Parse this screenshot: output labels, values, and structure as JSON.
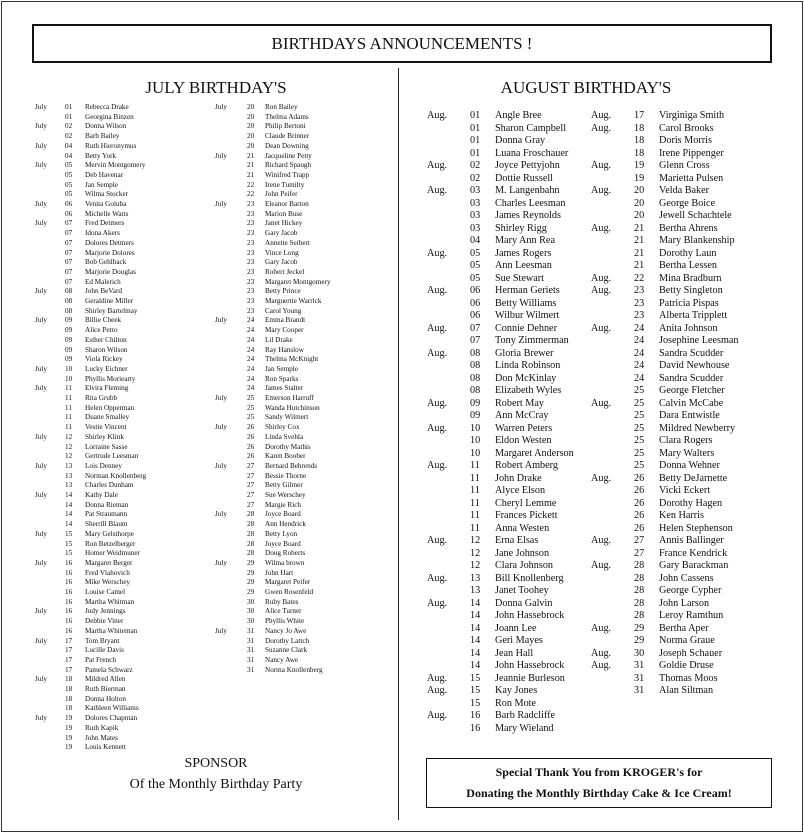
{
  "title": "BIRTHDAYS ANNOUNCEMENTS !",
  "july": {
    "heading": "JULY BIRTHDAY'S",
    "col1": [
      [
        "July",
        "01",
        "Rebecca Drake"
      ],
      [
        "",
        "01",
        "Georgina Binzen"
      ],
      [
        "July",
        "02",
        "Donna Wilson"
      ],
      [
        "",
        "02",
        "Barb Bailey"
      ],
      [
        "July",
        "04",
        "Ruth Hieronymus"
      ],
      [
        "",
        "04",
        "Betty York"
      ],
      [
        "July",
        "05",
        "Mervin Montgomery"
      ],
      [
        "",
        "05",
        "Deb Havenar"
      ],
      [
        "",
        "05",
        "Jan Semple"
      ],
      [
        "",
        "05",
        "Wilma Stocker"
      ],
      [
        "July",
        "06",
        "Venita Goluba"
      ],
      [
        "",
        "06",
        "Michelle Watts"
      ],
      [
        "July",
        "07",
        "Fred Detmers"
      ],
      [
        "",
        "07",
        "Idona Akers"
      ],
      [
        "",
        "07",
        "Dolores Detmers"
      ],
      [
        "",
        "07",
        "Marjorie Dolores"
      ],
      [
        "",
        "07",
        "Bob Gehlback"
      ],
      [
        "",
        "07",
        "Marjorie Douglas"
      ],
      [
        "",
        "07",
        "Ed Malerich"
      ],
      [
        "July",
        "08",
        "John BeVard"
      ],
      [
        "",
        "08",
        "Geraldine Miller"
      ],
      [
        "",
        "08",
        "Shirley Bartelmay"
      ],
      [
        "July",
        "09",
        "Billie Cheek"
      ],
      [
        "",
        "09",
        "Alice Petro"
      ],
      [
        "",
        "09",
        "Esther Chilton"
      ],
      [
        "",
        "09",
        "Sharon Wilson"
      ],
      [
        "",
        "09",
        "Viola Rickey"
      ],
      [
        "July",
        "10",
        "Lucky Eichner"
      ],
      [
        "",
        "10",
        "Phyllis Moriearty"
      ],
      [
        "July",
        "11",
        "Elvira Fleming"
      ],
      [
        "",
        "11",
        "Rita Grubb"
      ],
      [
        "",
        "11",
        "Helen Opperman"
      ],
      [
        "",
        "11",
        "Duane Smalley"
      ],
      [
        "",
        "11",
        "Vestie Vincent"
      ],
      [
        "July",
        "12",
        "Shirley Klink"
      ],
      [
        "",
        "12",
        "Lorraine Sasse"
      ],
      [
        "",
        "12",
        "Gertrude Leesman"
      ],
      [
        "July",
        "13",
        "Lois Denney"
      ],
      [
        "",
        "13",
        "Norman Knollenberg"
      ],
      [
        "",
        "13",
        "Charles Dunham"
      ],
      [
        "July",
        "14",
        "Kathy Dale"
      ],
      [
        "",
        "14",
        "Donna Rieman"
      ],
      [
        "",
        "14",
        "Pat Straumann"
      ],
      [
        "",
        "14",
        "Sherrill Blaum"
      ],
      [
        "July",
        "15",
        "Mary Gelsthorpe"
      ],
      [
        "",
        "15",
        "Ron Betzelberger"
      ],
      [
        "",
        "15",
        "Homer Weidmuner"
      ],
      [
        "July",
        "16",
        "Margaret Berger"
      ],
      [
        "",
        "16",
        "Fred Vlahovich"
      ],
      [
        "",
        "16",
        "Mike Werschey"
      ],
      [
        "",
        "16",
        "Louise Camel"
      ],
      [
        "",
        "16",
        "Martha Whitman"
      ],
      [
        "July",
        "16",
        "Judy Jennings"
      ],
      [
        "",
        "16",
        "Debbie Viner"
      ],
      [
        "",
        "16",
        "Martha Whiteman"
      ],
      [
        "July",
        "17",
        "Tom Bryant"
      ],
      [
        "",
        "17",
        "Lucille Davis"
      ],
      [
        "",
        "17",
        "Pat French"
      ],
      [
        "",
        "17",
        "Pamela Schwarz"
      ],
      [
        "July",
        "18",
        "Mildred Allen"
      ],
      [
        "",
        "18",
        "Ruth Bierman"
      ],
      [
        "",
        "18",
        "Donna Holton"
      ],
      [
        "",
        "18",
        "Kathleen Williams"
      ],
      [
        "July",
        "19",
        "Dolores Chapman"
      ],
      [
        "",
        "19",
        "Ruth Kapik"
      ],
      [
        "",
        "19",
        "John Mates"
      ],
      [
        "",
        "19",
        "Louis Kennett"
      ]
    ],
    "col2": [
      [
        "July",
        "20",
        "Ron Bailey"
      ],
      [
        "",
        "20",
        "Thelma Adams"
      ],
      [
        "",
        "20",
        "Philip Bertoni"
      ],
      [
        "",
        "20",
        "Claude Brinner"
      ],
      [
        "",
        "20",
        "Dean Downing"
      ],
      [
        "July",
        "21",
        "Jacqueline Petty"
      ],
      [
        "",
        "21",
        "Richard Spaugh"
      ],
      [
        "",
        "21",
        "Winifred Trapp"
      ],
      [
        "",
        "22",
        "Irene Tumilty"
      ],
      [
        "",
        "22",
        "John Peifer"
      ],
      [
        "July",
        "23",
        "Eleanor Barton"
      ],
      [
        "",
        "23",
        "Marion Buse"
      ],
      [
        "",
        "23",
        "Janet Hickey"
      ],
      [
        "",
        "23",
        "Gary Jacob"
      ],
      [
        "",
        "23",
        "Annette Seibert"
      ],
      [
        "",
        "23",
        "Vince Long"
      ],
      [
        "",
        "23",
        "Gary Jacob"
      ],
      [
        "",
        "23",
        "Robert Jeckel"
      ],
      [
        "",
        "23",
        "Margaret Montgomery"
      ],
      [
        "",
        "23",
        "Betty Prince"
      ],
      [
        "",
        "23",
        "Marguertie Warrick"
      ],
      [
        "",
        "23",
        "Carol Young"
      ],
      [
        "July",
        "24",
        "Emma Brandt"
      ],
      [
        "",
        "24",
        "Mary Cooper"
      ],
      [
        "",
        "24",
        "Lil Drake"
      ],
      [
        "",
        "24",
        "Ray Hanslow"
      ],
      [
        "",
        "24",
        "Thelma McKnight"
      ],
      [
        "",
        "24",
        "Jan Semple"
      ],
      [
        "",
        "24",
        "Ron Sparks"
      ],
      [
        "",
        "24",
        "James Stalter"
      ],
      [
        "July",
        "25",
        "Emerson Harruff"
      ],
      [
        "",
        "25",
        "Wanda Hutchinson"
      ],
      [
        "",
        "25",
        "Sandy Wilmert"
      ],
      [
        "July",
        "26",
        "Shirley Cox"
      ],
      [
        "",
        "26",
        "Linda Svehla"
      ],
      [
        "",
        "26",
        "Dorothy Mathis"
      ],
      [
        "",
        "26",
        "Karen Boober"
      ],
      [
        "July",
        "27",
        "Bernard Behrends"
      ],
      [
        "",
        "27",
        "Bessie Thorne"
      ],
      [
        "",
        "27",
        "Betty Gilmer"
      ],
      [
        "",
        "27",
        "Sue Werschey"
      ],
      [
        "",
        "27",
        "Margie Rich"
      ],
      [
        "July",
        "28",
        "Joyce Board"
      ],
      [
        "",
        "28",
        "Ann Hendrick"
      ],
      [
        "",
        "28",
        "Betty Lyon"
      ],
      [
        "",
        "28",
        "Joyce Board"
      ],
      [
        "",
        "28",
        "Doug Roberts"
      ],
      [
        "July",
        "29",
        "Wilma brown"
      ],
      [
        "",
        "29",
        "John Hart"
      ],
      [
        "",
        "29",
        "Margaret Peifer"
      ],
      [
        "",
        "29",
        "Gwen Rosenfeld"
      ],
      [
        "",
        "30",
        "Ruby Bates"
      ],
      [
        "",
        "30",
        "Alice Turner"
      ],
      [
        "",
        "30",
        "Phyllis White"
      ],
      [
        "July",
        "31",
        "Nancy Jo Awe"
      ],
      [
        "",
        "31",
        "Dorothy Lattch"
      ],
      [
        "",
        "31",
        "Suzanne Clark"
      ],
      [
        "",
        "31",
        "Nancy Awe"
      ],
      [
        "",
        "31",
        "Norma Knollenberg"
      ]
    ]
  },
  "august": {
    "heading": "AUGUST  BIRTHDAY'S",
    "col1": [
      [
        "Aug.",
        "01",
        "Angle Bree"
      ],
      [
        "",
        "01",
        "Sharon Campbell"
      ],
      [
        "",
        "01",
        "Donna Gray"
      ],
      [
        "",
        "01",
        "Luana Froschauer"
      ],
      [
        "Aug.",
        "02",
        "Joyce Pettyjohn"
      ],
      [
        "",
        "02",
        "Dottie Russell"
      ],
      [
        "Aug.",
        "03",
        "M. Langenbahn"
      ],
      [
        "",
        "03",
        "Charles Leesman"
      ],
      [
        "",
        "03",
        "James Reynolds"
      ],
      [
        "",
        "03",
        "Shirley Rigg"
      ],
      [
        "",
        "04",
        "Mary Ann Rea"
      ],
      [
        "Aug.",
        "05",
        "James Rogers"
      ],
      [
        "",
        "05",
        "Ann Leesman"
      ],
      [
        "",
        "05",
        "Sue Stewart"
      ],
      [
        "Aug.",
        "06",
        "Herman Geriets"
      ],
      [
        "",
        "06",
        "Betty Williams"
      ],
      [
        "",
        "06",
        "Wilbur Wilmert"
      ],
      [
        "Aug.",
        "07",
        "Connie Dehner"
      ],
      [
        "",
        "07",
        "Tony Zimmerman"
      ],
      [
        "Aug.",
        "08",
        "Gloria Brewer"
      ],
      [
        "",
        "08",
        "Linda Robinson"
      ],
      [
        "",
        "08",
        "Don McKinlay"
      ],
      [
        "",
        "08",
        "Elizabeth Wyles"
      ],
      [
        "Aug.",
        "09",
        "Robert May"
      ],
      [
        "",
        "09",
        "Ann McCray"
      ],
      [
        "Aug.",
        "10",
        "Warren Peters"
      ],
      [
        "",
        "10",
        "Eldon Westen"
      ],
      [
        "",
        "10",
        "Margaret Anderson"
      ],
      [
        "Aug.",
        "11",
        "Robert Amberg"
      ],
      [
        "",
        "11",
        "John Drake"
      ],
      [
        "",
        "11",
        "Alyce Elson"
      ],
      [
        "",
        "11",
        "Cheryl   Lemme"
      ],
      [
        "",
        "11",
        "Frances Pickett"
      ],
      [
        "",
        "11",
        "Anna Westen"
      ],
      [
        "Aug.",
        "12",
        "Erna Elsas"
      ],
      [
        "",
        "12",
        "Jane Johnson"
      ],
      [
        "",
        "12",
        "Clara Johnson"
      ],
      [
        "Aug.",
        "13",
        "Bill Knollenberg"
      ],
      [
        "",
        "13",
        "Janet Toohey"
      ],
      [
        "Aug.",
        "14",
        "Donna Galvin"
      ],
      [
        "",
        "14",
        "John Hassebrock"
      ],
      [
        "",
        "14",
        "Joann Lee"
      ],
      [
        "",
        "14",
        "Geri Mayes"
      ],
      [
        "",
        "14",
        "Jean Hall"
      ],
      [
        "",
        "14",
        "John Hassebrock"
      ],
      [
        "Aug.",
        "15",
        "Jeannie Burleson"
      ],
      [
        "Aug.",
        "15",
        "Kay Jones"
      ],
      [
        "",
        "15",
        "Ron Mote"
      ],
      [
        "Aug.",
        "16",
        "Barb Radcliffe"
      ],
      [
        "",
        "16",
        "Mary Wieland"
      ]
    ],
    "col2": [
      [
        "Aug.",
        "17",
        "Virginiga Smith"
      ],
      [
        "Aug.",
        "18",
        "Carol Brooks"
      ],
      [
        "",
        "18",
        "Doris Morris"
      ],
      [
        "",
        "18",
        "Irene Pippenger"
      ],
      [
        "Aug.",
        "19",
        "Glenn Cross"
      ],
      [
        "",
        "19",
        "Marietta Pulsen"
      ],
      [
        "Aug.",
        "20",
        "Velda Baker"
      ],
      [
        "",
        "20",
        "George Boice"
      ],
      [
        "",
        "20",
        "Jewell Schachtele"
      ],
      [
        "Aug.",
        "21",
        "Bertha Ahrens"
      ],
      [
        "",
        "21",
        "Mary Blankenship"
      ],
      [
        "",
        "21",
        "Dorothy Laun"
      ],
      [
        "",
        "21",
        "Bertha Lessen"
      ],
      [
        "Aug.",
        "22",
        "Mina Bradburn"
      ],
      [
        "Aug.",
        "23",
        "Betty Singleton"
      ],
      [
        "",
        "23",
        "Patricia Pispas"
      ],
      [
        "",
        "23",
        "Alberta Tripplett"
      ],
      [
        "Aug.",
        "24",
        "Anita Johnson"
      ],
      [
        "",
        "24",
        "Josephine Leesman"
      ],
      [
        "",
        "24",
        "Sandra Scudder"
      ],
      [
        "",
        "24",
        "David Newhouse"
      ],
      [
        "",
        "24",
        "Sandra Scudder"
      ],
      [
        "",
        "25",
        "George Fletcher"
      ],
      [
        "Aug.",
        "25",
        "Calvin McCabe"
      ],
      [
        "",
        "25",
        "Dara Entwistle"
      ],
      [
        "",
        "25",
        "Mildred Newberry"
      ],
      [
        "",
        "25",
        "Clara Rogers"
      ],
      [
        "",
        "25",
        "Mary Walters"
      ],
      [
        "",
        "25",
        "Donna Wehner"
      ],
      [
        "Aug.",
        "26",
        "Betty DeJarnette"
      ],
      [
        "",
        "26",
        "Vicki Eckert"
      ],
      [
        "",
        "26",
        "Dorothy Hagen"
      ],
      [
        "",
        "26",
        "Ken Harris"
      ],
      [
        "",
        "26",
        "Helen Stephenson"
      ],
      [
        "Aug.",
        "27",
        "Annis Ballinger"
      ],
      [
        "",
        "27",
        "France Kendrick"
      ],
      [
        "Aug.",
        "28",
        "Gary Barackman"
      ],
      [
        "",
        "28",
        "John Cassens"
      ],
      [
        "",
        "28",
        "George Cypher"
      ],
      [
        "",
        "28",
        "John Larson"
      ],
      [
        "",
        "28",
        "Leroy Ramthun"
      ],
      [
        "Aug.",
        "29",
        "Bertha Aper"
      ],
      [
        "",
        "29",
        "Norma Graue"
      ],
      [
        "Aug.",
        "30",
        "Joseph Schauer"
      ],
      [
        "Aug.",
        "31",
        "Goldie Druse"
      ],
      [
        "",
        "31",
        "Thomas Moos"
      ],
      [
        "",
        "31",
        "Alan Siltman"
      ]
    ]
  },
  "sponsor": {
    "line1": "SPONSOR",
    "line2": "Of the Monthly Birthday Party"
  },
  "thanks": {
    "line1": "Special Thank You  from KROGER's for",
    "line2": "Donating the Monthly Birthday Cake & Ice Cream!"
  }
}
